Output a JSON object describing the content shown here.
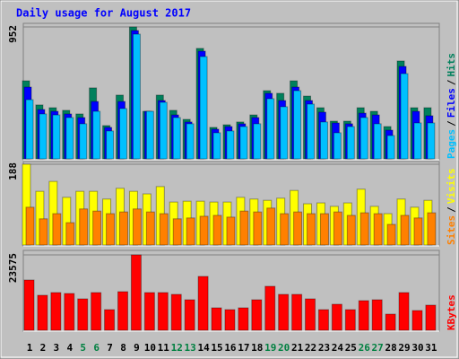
{
  "chart_data": [
    {
      "type": "bar",
      "title": "Daily usage for August 2017",
      "ylim": [
        0,
        952
      ],
      "yticks": [
        952
      ],
      "legend_separator": "/",
      "series": [
        {
          "name": "Hits",
          "color": "#00805c",
          "values": [
            563,
            389,
            369,
            350,
            324,
            512,
            240,
            460,
            952,
            343,
            460,
            350,
            285,
            797,
            227,
            246,
            266,
            317,
            492,
            473,
            563,
            453,
            369,
            272,
            272,
            369,
            343,
            233,
            706,
            369,
            369
          ]
        },
        {
          "name": "Files",
          "color": "#0000ff",
          "values": [
            518,
            356,
            343,
            324,
            298,
            414,
            227,
            414,
            926,
            343,
            421,
            317,
            266,
            777,
            214,
            233,
            253,
            298,
            473,
            421,
            518,
            421,
            337,
            259,
            253,
            330,
            317,
            207,
            667,
            343,
            311
          ]
        },
        {
          "name": "Pages",
          "color": "#00c0ff",
          "values": [
            427,
            324,
            317,
            298,
            253,
            343,
            201,
            363,
            900,
            343,
            408,
            298,
            253,
            738,
            188,
            201,
            233,
            253,
            434,
            376,
            492,
            395,
            266,
            188,
            233,
            298,
            253,
            168,
            615,
            259,
            259
          ]
        }
      ]
    },
    {
      "type": "bar",
      "ylim": [
        0,
        188
      ],
      "yticks": [
        188
      ],
      "legend_separator": "/",
      "series": [
        {
          "name": "Visits",
          "color": "#ffff00",
          "values": [
            188,
            125,
            148,
            111,
            125,
            125,
            107,
            132,
            125,
            119,
            136,
            100,
            102,
            102,
            100,
            100,
            111,
            107,
            104,
            109,
            127,
            96,
            98,
            90,
            98,
            130,
            90,
            73,
            107,
            88,
            104
          ]
        },
        {
          "name": "Sites",
          "color": "#ff8000",
          "values": [
            88,
            61,
            73,
            52,
            84,
            79,
            73,
            77,
            84,
            77,
            73,
            61,
            63,
            67,
            69,
            65,
            79,
            77,
            86,
            73,
            77,
            73,
            73,
            77,
            69,
            75,
            73,
            48,
            69,
            63,
            75
          ]
        }
      ]
    },
    {
      "type": "bar",
      "ylim": [
        0,
        23575
      ],
      "yticks": [
        23575
      ],
      "categories": [
        "1",
        "2",
        "3",
        "4",
        "5",
        "6",
        "7",
        "8",
        "9",
        "10",
        "11",
        "12",
        "13",
        "14",
        "15",
        "16",
        "17",
        "18",
        "19",
        "20",
        "21",
        "22",
        "23",
        "24",
        "25",
        "26",
        "27",
        "28",
        "29",
        "30",
        "31"
      ],
      "category_colors": [
        "#000000",
        "#000000",
        "#000000",
        "#000000",
        "#008040",
        "#008040",
        "#000000",
        "#000000",
        "#000000",
        "#000000",
        "#000000",
        "#008040",
        "#008040",
        "#000000",
        "#000000",
        "#000000",
        "#000000",
        "#000000",
        "#008040",
        "#008040",
        "#000000",
        "#000000",
        "#000000",
        "#000000",
        "#000000",
        "#008040",
        "#008040",
        "#000000",
        "#000000",
        "#000000",
        "#000000"
      ],
      "series": [
        {
          "name": "KBytes",
          "color": "#ff0000",
          "values": [
            15719,
            10947,
            11789,
            11509,
            9825,
            11789,
            6456,
            12070,
            23575,
            11789,
            11789,
            11228,
            9544,
            16842,
            7018,
            6456,
            7018,
            9544,
            13754,
            11228,
            11228,
            9825,
            6456,
            8140,
            6456,
            9263,
            9544,
            5053,
            11789,
            6175,
            7860
          ]
        }
      ]
    }
  ]
}
